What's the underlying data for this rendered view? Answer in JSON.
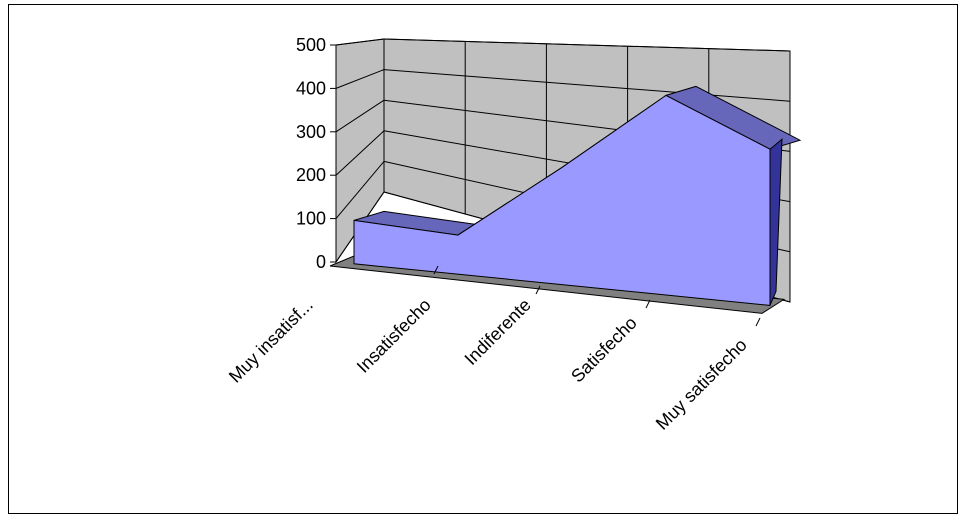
{
  "chart_data": {
    "type": "area",
    "three_d": true,
    "title": "",
    "xlabel": "",
    "ylabel": "",
    "categories": [
      "Muy insatisf...",
      "Insatisfecho",
      "Indiferente",
      "Satisfecho",
      "Muy satisfecho"
    ],
    "series": [
      {
        "values": [
          100,
          90,
          270,
          460,
          360
        ]
      }
    ],
    "y_ticks": [
      "0",
      "100",
      "200",
      "300",
      "400",
      "500"
    ],
    "ylim": [
      0,
      500
    ],
    "grid": true,
    "legend": "none",
    "colors": {
      "area_front": "#9999ff",
      "area_top": "#6666bb",
      "area_side": "#333399",
      "wall": "#c0c0c0",
      "floor": "#808080",
      "grid": "#000000"
    }
  }
}
